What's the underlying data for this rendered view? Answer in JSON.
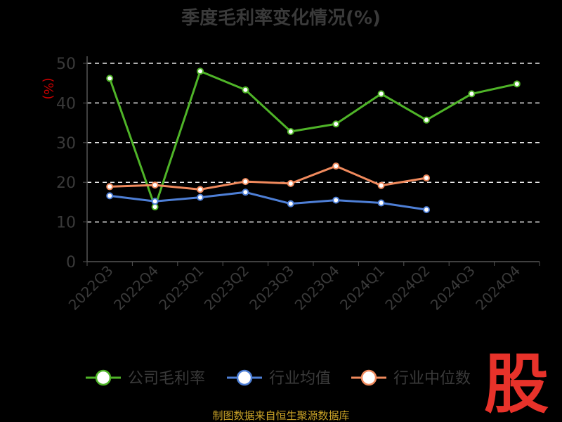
{
  "chart_data": {
    "type": "line",
    "title": "季度毛利率变化情况(%)",
    "ylabel": "(%)",
    "xlabel": "",
    "ylim": [
      0,
      50
    ],
    "yticks": [
      0,
      10,
      20,
      30,
      40,
      50
    ],
    "grid": true,
    "legend_position": "bottom",
    "categories": [
      "2022Q3",
      "2022Q4",
      "2023Q1",
      "2023Q2",
      "2023Q3",
      "2023Q4",
      "2024Q1",
      "2024Q2",
      "2024Q3",
      "2024Q4"
    ],
    "series": [
      {
        "name": "公司毛利率",
        "color": "#4fb428",
        "values": [
          46.2,
          13.8,
          48.0,
          43.3,
          32.8,
          34.7,
          42.3,
          35.7,
          42.3,
          44.8
        ]
      },
      {
        "name": "行业均值",
        "color": "#4e7fd6",
        "values": [
          16.6,
          15.2,
          16.2,
          17.5,
          14.6,
          15.5,
          14.8,
          13.1,
          null,
          null
        ]
      },
      {
        "name": "行业中位数",
        "color": "#f08a5d",
        "values": [
          18.9,
          19.3,
          18.2,
          20.2,
          19.7,
          24.1,
          19.2,
          21.1,
          null,
          null
        ]
      }
    ]
  },
  "footer": "制图数据来自恒生聚源数据库",
  "logo_text": "股"
}
